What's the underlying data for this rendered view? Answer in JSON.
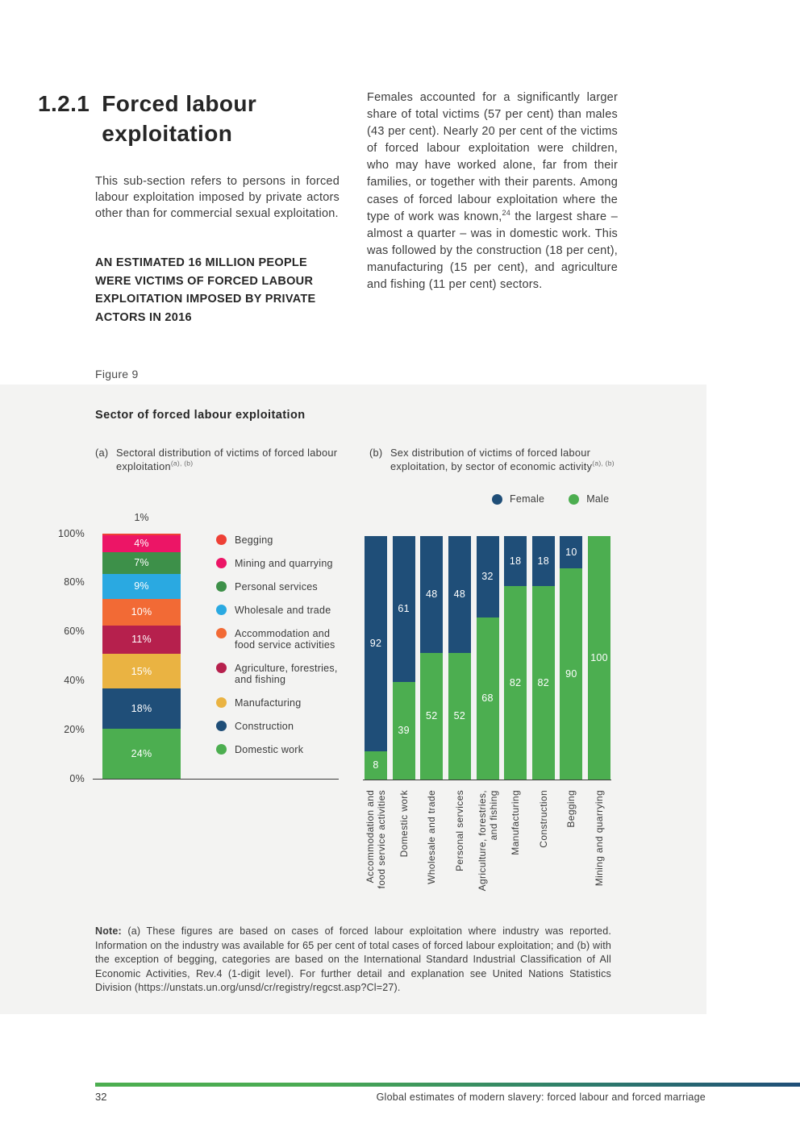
{
  "document": {
    "section": {
      "number": "1.2.1",
      "title": "Forced labour exploitation"
    },
    "intro": "This sub-section refers to persons in forced labour exploitation imposed by private actors other than for commercial sexual exploitation.",
    "callout": "AN ESTIMATED 16 MILLION PEOPLE WERE VICTIMS OF FORCED LABOUR EXPLOITATION IMPOSED BY PRIVATE ACTORS IN 2016",
    "body": {
      "part1": "Females accounted for a significantly larger share of total victims (57 per cent) than males (43 per cent). Nearly 20 per cent of the victims of forced labour exploitation were children, who may have worked alone, far from their families, or together with their parents. Among cases of forced labour exploitation where the type of work was known,",
      "footnote_ref": "24",
      "part2": " the largest share – almost a quarter – was in domestic work. This was followed by the construction (18 per cent), manufacturing (15 per cent), and agriculture and fishing (11 per cent) sectors."
    }
  },
  "figure": {
    "label": "Figure 9",
    "title": "Sector of forced labour exploitation",
    "panel_a": {
      "prefix": "(a)",
      "caption": "Sectoral distribution of victims of forced labour exploitation",
      "superscript": "(a), (b)"
    },
    "panel_b": {
      "prefix": "(b)",
      "caption": "Sex distribution of victims of forced labour exploitation, by sector of economic activity",
      "superscript": "(a), (b)"
    },
    "note": {
      "label": "Note:",
      "text": " (a) These figures are based on cases of forced labour exploitation where industry was reported. Information on the industry was available for 65 per cent of total cases of forced labour exploitation; and (b) with the exception of begging, categories are based on the International Standard Industrial Classification of All Economic Activities, Rev.4 (1-digit level). For further detail and explanation see United Nations Statistics Division (https://unstats.un.org/unsd/cr/registry/regcst.asp?Cl=27)."
    }
  },
  "chart_data": [
    {
      "id": "sectoral-distribution",
      "type": "bar",
      "subtype": "single-stacked-percentage-bar",
      "title": "Sectoral distribution of victims of forced labour exploitation",
      "ylim": [
        0,
        100
      ],
      "y_ticks": [
        100,
        80,
        60,
        40,
        20,
        0
      ],
      "grid": false,
      "legend_position": "right",
      "segments": [
        {
          "label": "Begging",
          "value": 1,
          "value_label": "1%",
          "color": "#ee4036",
          "label_position": "above"
        },
        {
          "label": "Mining and quarrying",
          "value": 4,
          "value_label": "4%",
          "color": "#ec1566"
        },
        {
          "label": "Personal services",
          "value": 7,
          "value_label": "7%",
          "color": "#3d9049"
        },
        {
          "label": "Wholesale and trade",
          "value": 9,
          "value_label": "9%",
          "color": "#2aa9e1"
        },
        {
          "label": "Accommodation and\nfood service activities",
          "value": 10,
          "value_label": "10%",
          "color": "#f26a35"
        },
        {
          "label": "Agriculture, forestries,\nand fishing",
          "value": 11,
          "value_label": "11%",
          "color": "#b6204d"
        },
        {
          "label": "Manufacturing",
          "value": 15,
          "value_label": "15%",
          "color": "#eab342"
        },
        {
          "label": "Construction",
          "value": 18,
          "value_label": "18%",
          "color": "#1f4e78"
        },
        {
          "label": "Domestic work",
          "value": 24,
          "value_label": "24%",
          "color": "#4cae50"
        }
      ]
    },
    {
      "id": "sex-distribution-by-sector",
      "type": "bar",
      "subtype": "stacked-percentage-columns",
      "title": "Sex distribution of victims of forced labour exploitation, by sector of economic activity",
      "ylim": [
        0,
        100
      ],
      "grid": false,
      "legend_position": "top-right",
      "legend": [
        {
          "name": "Female",
          "color": "#1f4e78"
        },
        {
          "name": "Male",
          "color": "#4cae50"
        }
      ],
      "categories": [
        "Accommodation and\nfood service activities",
        "Domestic work",
        "Wholesale and trade",
        "Personal services",
        "Agriculture, forestries,\nand fishing",
        "Manufacturing",
        "Construction",
        "Begging",
        "Mining and quarrying"
      ],
      "series": [
        {
          "name": "Female",
          "color": "#1f4e78",
          "values": [
            92,
            61,
            48,
            48,
            32,
            18,
            18,
            10,
            0
          ]
        },
        {
          "name": "Male",
          "color": "#4cae50",
          "values": [
            8,
            39,
            52,
            52,
            68,
            82,
            82,
            90,
            100
          ]
        }
      ]
    }
  ],
  "footer": {
    "page_number": "32",
    "text": "Global estimates of modern slavery: forced labour and forced marriage"
  },
  "colors": {
    "female": "#1f4e78",
    "male": "#4cae50",
    "axis": "#3c3c3c",
    "panel_bg": "#f3f3f2"
  }
}
